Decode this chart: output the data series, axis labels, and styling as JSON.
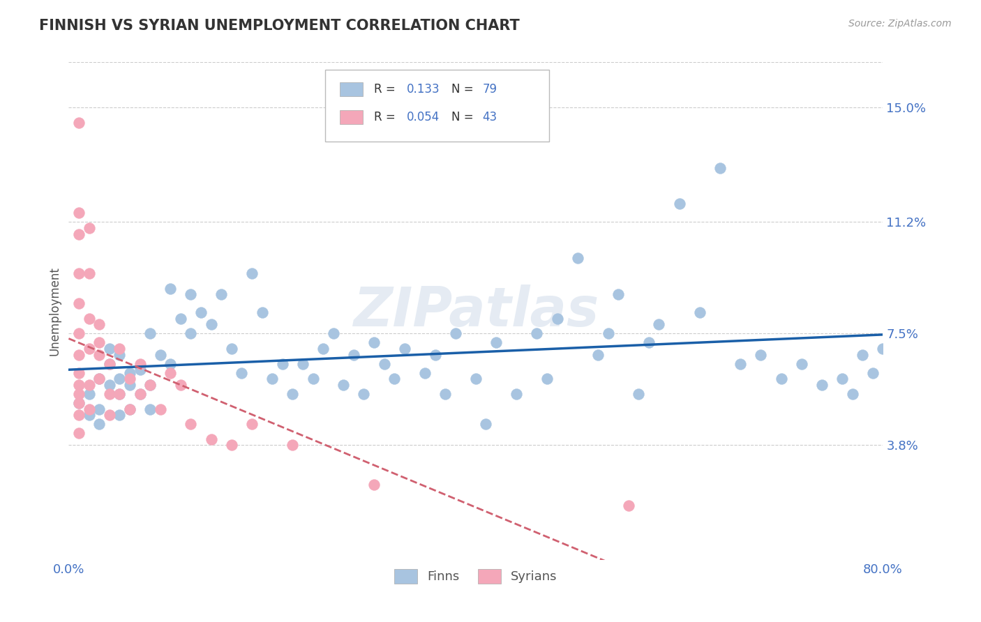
{
  "title": "FINNISH VS SYRIAN UNEMPLOYMENT CORRELATION CHART",
  "source_text": "Source: ZipAtlas.com",
  "ylabel": "Unemployment",
  "xlim": [
    0.0,
    0.8
  ],
  "ylim": [
    0.0,
    0.165
  ],
  "yticks": [
    0.038,
    0.075,
    0.112,
    0.15
  ],
  "ytick_labels": [
    "3.8%",
    "7.5%",
    "11.2%",
    "15.0%"
  ],
  "xtick_labels": [
    "0.0%",
    "80.0%"
  ],
  "legend_r_finn": "0.133",
  "legend_n_finn": "79",
  "legend_r_syrian": "0.054",
  "legend_n_syrian": "43",
  "finn_color": "#a8c4e0",
  "syrian_color": "#f4a7b9",
  "finn_line_color": "#1a5fa8",
  "syrian_line_color": "#d06070",
  "axis_label_color": "#4472c4",
  "title_color": "#333333",
  "grid_color": "#cccccc",
  "watermark": "ZIPatlas",
  "finn_points_x": [
    0.01,
    0.02,
    0.02,
    0.03,
    0.03,
    0.03,
    0.04,
    0.04,
    0.04,
    0.05,
    0.05,
    0.05,
    0.05,
    0.06,
    0.06,
    0.06,
    0.07,
    0.07,
    0.08,
    0.08,
    0.08,
    0.09,
    0.1,
    0.1,
    0.11,
    0.12,
    0.12,
    0.13,
    0.14,
    0.15,
    0.16,
    0.17,
    0.18,
    0.19,
    0.2,
    0.21,
    0.22,
    0.23,
    0.24,
    0.25,
    0.26,
    0.27,
    0.28,
    0.29,
    0.3,
    0.31,
    0.32,
    0.33,
    0.35,
    0.36,
    0.37,
    0.38,
    0.4,
    0.41,
    0.42,
    0.44,
    0.46,
    0.47,
    0.48,
    0.5,
    0.52,
    0.53,
    0.54,
    0.56,
    0.57,
    0.58,
    0.6,
    0.62,
    0.64,
    0.66,
    0.68,
    0.7,
    0.72,
    0.74,
    0.76,
    0.77,
    0.78,
    0.79,
    0.8
  ],
  "finn_points_y": [
    0.052,
    0.055,
    0.048,
    0.06,
    0.05,
    0.045,
    0.058,
    0.065,
    0.07,
    0.06,
    0.055,
    0.048,
    0.068,
    0.058,
    0.05,
    0.062,
    0.063,
    0.055,
    0.075,
    0.058,
    0.05,
    0.068,
    0.09,
    0.065,
    0.08,
    0.088,
    0.075,
    0.082,
    0.078,
    0.088,
    0.07,
    0.062,
    0.095,
    0.082,
    0.06,
    0.065,
    0.055,
    0.065,
    0.06,
    0.07,
    0.075,
    0.058,
    0.068,
    0.055,
    0.072,
    0.065,
    0.06,
    0.07,
    0.062,
    0.068,
    0.055,
    0.075,
    0.06,
    0.045,
    0.072,
    0.055,
    0.075,
    0.06,
    0.08,
    0.1,
    0.068,
    0.075,
    0.088,
    0.055,
    0.072,
    0.078,
    0.118,
    0.082,
    0.13,
    0.065,
    0.068,
    0.06,
    0.065,
    0.058,
    0.06,
    0.055,
    0.068,
    0.062,
    0.07
  ],
  "syrian_points_x": [
    0.01,
    0.01,
    0.01,
    0.01,
    0.01,
    0.01,
    0.01,
    0.01,
    0.01,
    0.01,
    0.01,
    0.01,
    0.01,
    0.02,
    0.02,
    0.02,
    0.02,
    0.02,
    0.02,
    0.03,
    0.03,
    0.03,
    0.03,
    0.04,
    0.04,
    0.04,
    0.05,
    0.05,
    0.06,
    0.06,
    0.07,
    0.07,
    0.08,
    0.09,
    0.1,
    0.11,
    0.12,
    0.14,
    0.16,
    0.18,
    0.22,
    0.3,
    0.55
  ],
  "syrian_points_y": [
    0.145,
    0.115,
    0.108,
    0.095,
    0.085,
    0.075,
    0.068,
    0.062,
    0.058,
    0.055,
    0.052,
    0.048,
    0.042,
    0.11,
    0.095,
    0.08,
    0.07,
    0.058,
    0.05,
    0.078,
    0.072,
    0.068,
    0.06,
    0.065,
    0.055,
    0.048,
    0.07,
    0.055,
    0.06,
    0.05,
    0.065,
    0.055,
    0.058,
    0.05,
    0.062,
    0.058,
    0.045,
    0.04,
    0.038,
    0.045,
    0.038,
    0.025,
    0.018
  ]
}
